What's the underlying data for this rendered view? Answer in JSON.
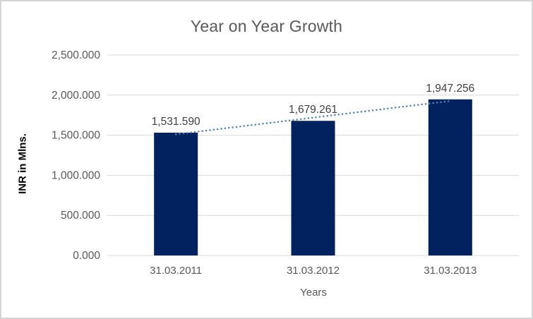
{
  "chart_data": {
    "type": "bar",
    "title": "Year on Year Growth",
    "xlabel": "Years",
    "ylabel": "INR in Mlns.",
    "categories": [
      "31.03.2011",
      "31.03.2012",
      "31.03.2013"
    ],
    "values": [
      1531.59,
      1679.261,
      1947.256
    ],
    "data_labels": [
      "1,531.590",
      "1,679.261",
      "1,947.256"
    ],
    "ylim": [
      0,
      2500
    ],
    "ytick_step": 500,
    "ytick_labels": [
      "0.000",
      "500.000",
      "1,000.000",
      "1,500.000",
      "2,000.000",
      "2,500.000"
    ],
    "grid": true,
    "legend": "none",
    "trendline": {
      "type": "linear",
      "style": "dotted"
    },
    "colors": {
      "bar": "#02215f",
      "trendline": "#4e81be",
      "gridline": "#d9d9d9",
      "title_text": "#595959",
      "axis_text": "#595959",
      "data_label_text": "#404040",
      "ylabel_text": "#000000",
      "frame_border": "#d5d5d5",
      "background": "#ffffff"
    }
  }
}
